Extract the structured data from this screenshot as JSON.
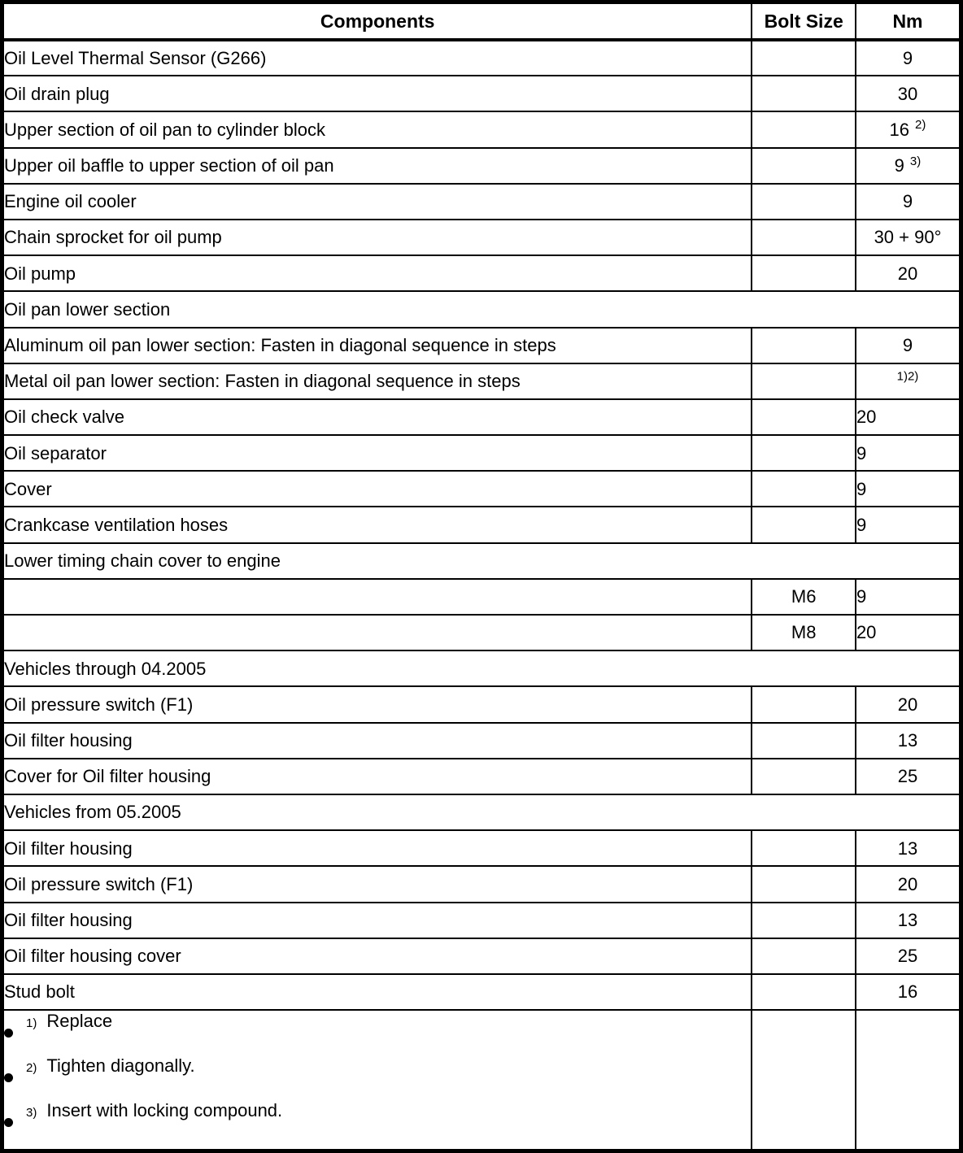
{
  "table": {
    "columns": [
      "Components",
      "Bolt Size",
      "Nm"
    ],
    "rows": [
      {
        "component": "Oil Level Thermal Sensor (G266)",
        "bolt": "",
        "nm": "9",
        "nm_sup": "",
        "nm_align": "center",
        "section": false
      },
      {
        "component": "Oil drain plug",
        "bolt": "",
        "nm": "30",
        "nm_sup": "",
        "nm_align": "center",
        "section": false
      },
      {
        "component": "Upper section of oil pan to cylinder block",
        "bolt": "",
        "nm": "16",
        "nm_sup": "2)",
        "nm_align": "center",
        "section": false
      },
      {
        "component": "Upper oil baffle to upper section of oil pan",
        "bolt": "",
        "nm": "9",
        "nm_sup": "3)",
        "nm_align": "center",
        "section": false
      },
      {
        "component": "Engine oil cooler",
        "bolt": "",
        "nm": "9",
        "nm_sup": "",
        "nm_align": "center",
        "section": false
      },
      {
        "component": "Chain sprocket for oil pump",
        "bolt": "",
        "nm": "30 + 90°",
        "nm_sup": "",
        "nm_align": "center",
        "section": false
      },
      {
        "component": "Oil pump",
        "bolt": "",
        "nm": "20",
        "nm_sup": "",
        "nm_align": "center",
        "section": false
      },
      {
        "component": "Oil pan lower section",
        "bolt": "",
        "nm": "",
        "nm_sup": "",
        "nm_align": "center",
        "section": true
      },
      {
        "component": "Aluminum oil pan lower section: Fasten in diagonal sequence in steps",
        "bolt": "",
        "nm": "9",
        "nm_sup": "",
        "nm_align": "center",
        "section": false
      },
      {
        "component": "Metal oil pan lower section: Fasten in diagonal sequence in steps",
        "bolt": "",
        "nm": "",
        "nm_sup": "1)2)",
        "nm_align": "center",
        "section": false
      },
      {
        "component": "Oil check valve",
        "bolt": "",
        "nm": "20",
        "nm_sup": "",
        "nm_align": "left",
        "section": false
      },
      {
        "component": "Oil separator",
        "bolt": "",
        "nm": "9",
        "nm_sup": "",
        "nm_align": "left",
        "section": false
      },
      {
        "component": "Cover",
        "bolt": "",
        "nm": "9",
        "nm_sup": "",
        "nm_align": "left",
        "section": false
      },
      {
        "component": "Crankcase ventilation hoses",
        "bolt": "",
        "nm": "9",
        "nm_sup": "",
        "nm_align": "left",
        "section": false
      },
      {
        "component": "Lower timing chain cover to engine",
        "bolt": "",
        "nm": "",
        "nm_sup": "",
        "nm_align": "center",
        "section": true
      },
      {
        "component": "",
        "bolt": "M6",
        "nm": "9",
        "nm_sup": "",
        "nm_align": "left",
        "section": false
      },
      {
        "component": "",
        "bolt": "M8",
        "nm": "20",
        "nm_sup": "",
        "nm_align": "left",
        "section": false
      },
      {
        "component": "Vehicles through 04.2005",
        "bolt": "",
        "nm": "",
        "nm_sup": "",
        "nm_align": "center",
        "section": true
      },
      {
        "component": "Oil pressure switch (F1)",
        "bolt": "",
        "nm": "20",
        "nm_sup": "",
        "nm_align": "center",
        "section": false
      },
      {
        "component": "Oil filter housing",
        "bolt": "",
        "nm": "13",
        "nm_sup": "",
        "nm_align": "center",
        "section": false
      },
      {
        "component": "Cover for Oil filter housing",
        "bolt": "",
        "nm": "25",
        "nm_sup": "",
        "nm_align": "center",
        "section": false
      },
      {
        "component": "Vehicles from 05.2005",
        "bolt": "",
        "nm": "",
        "nm_sup": "",
        "nm_align": "center",
        "section": true
      },
      {
        "component": "Oil filter housing",
        "bolt": "",
        "nm": "13",
        "nm_sup": "",
        "nm_align": "center",
        "section": false
      },
      {
        "component": "Oil pressure switch (F1)",
        "bolt": "",
        "nm": "20",
        "nm_sup": "",
        "nm_align": "center",
        "section": false
      },
      {
        "component": "Oil filter housing",
        "bolt": "",
        "nm": "13",
        "nm_sup": "",
        "nm_align": "center",
        "section": false
      },
      {
        "component": "Oil filter housing cover",
        "bolt": "",
        "nm": "25",
        "nm_sup": "",
        "nm_align": "center",
        "section": false
      },
      {
        "component": "Stud bolt",
        "bolt": "",
        "nm": "16",
        "nm_sup": "",
        "nm_align": "center",
        "section": false
      }
    ],
    "footnotes": [
      {
        "sup": "1)",
        "text": "Replace"
      },
      {
        "sup": "2)",
        "text": "Tighten diagonally."
      },
      {
        "sup": "3)",
        "text": "Insert with locking compound."
      }
    ],
    "colors": {
      "border": "#000000",
      "text": "#000000",
      "background": "#ffffff"
    }
  }
}
